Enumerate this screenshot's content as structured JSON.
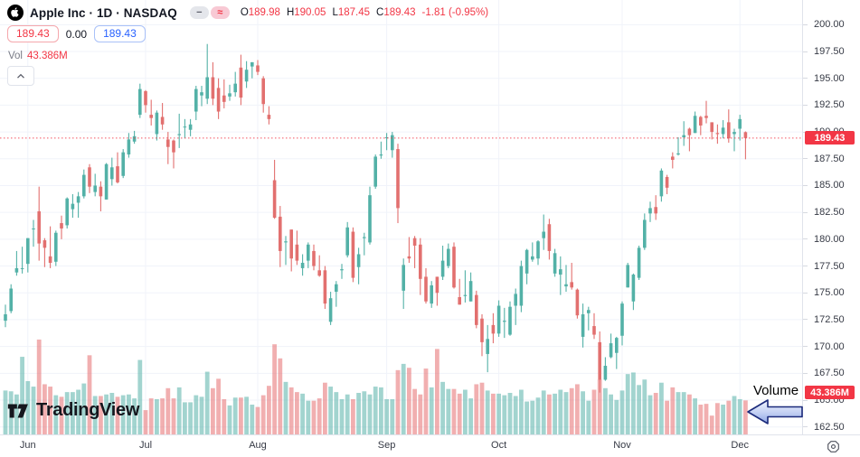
{
  "header": {
    "symbol_title": "Apple Inc · 1D · NASDAQ",
    "toolbar_icons": {
      "collapse_glyph": "−",
      "approx_glyph": "≈"
    },
    "ohlc": {
      "open_label": "O",
      "open": "189.98",
      "high_label": "H",
      "high": "190.05",
      "low_label": "L",
      "low": "187.45",
      "close_label": "C",
      "close": "189.43",
      "change": "-1.81 (-0.95%)"
    },
    "quote_boxes": {
      "sell": "189.43",
      "spread": "0.00",
      "buy": "189.43"
    },
    "volume_row": {
      "label": "Vol",
      "value": "43.386M"
    }
  },
  "badges": {
    "last_price": "189.43",
    "volume": "43.386M"
  },
  "annotation": {
    "label": "Volume"
  },
  "watermark": {
    "brand": "TradingView"
  },
  "colors": {
    "up": "#53b1a7",
    "down": "#e2706f",
    "up_volume": "rgba(85,177,167,0.55)",
    "down_volume": "rgba(230,110,112,0.55)",
    "accent_red": "#f23645",
    "buy_blue": "#2962ff",
    "grid": "#f0f3fa",
    "axis_text": "#363a45",
    "title_text": "#131722"
  },
  "chart_data": {
    "type": "candlestick",
    "symbol": "Apple Inc",
    "exchange": "NASDAQ",
    "interval": "1D",
    "last_close": 189.43,
    "last_volume_label": "43.386M",
    "y_axis_range": [
      162.1,
      202.3
    ],
    "grid": true,
    "price_ticks": [
      "200.00",
      "197.50",
      "195.00",
      "192.50",
      "190.00",
      "187.50",
      "185.00",
      "182.50",
      "180.00",
      "177.50",
      "175.00",
      "172.50",
      "170.00",
      "167.50",
      "165.00",
      "162.50"
    ],
    "month_ticks": [
      {
        "label": "Jun",
        "index": 4
      },
      {
        "label": "Jul",
        "index": 25
      },
      {
        "label": "Aug",
        "index": 45
      },
      {
        "label": "Sep",
        "index": 68
      },
      {
        "label": "Oct",
        "index": 88
      },
      {
        "label": "Nov",
        "index": 110
      },
      {
        "label": "Dec",
        "index": 131
      }
    ],
    "candles_format": [
      "open",
      "high",
      "low",
      "close",
      "volume_millions"
    ],
    "candles": [
      [
        172.4,
        173.9,
        171.8,
        173.0,
        56
      ],
      [
        173.3,
        175.8,
        173.1,
        175.4,
        55
      ],
      [
        176.9,
        178.9,
        176.6,
        177.3,
        51
      ],
      [
        177.3,
        179.3,
        176.8,
        177.3,
        99
      ],
      [
        177.7,
        180.1,
        176.9,
        180.1,
        68
      ],
      [
        181.0,
        181.8,
        179.3,
        181.0,
        61
      ],
      [
        182.6,
        184.9,
        178.0,
        179.6,
        121
      ],
      [
        179.9,
        180.1,
        177.4,
        179.2,
        64
      ],
      [
        178.4,
        181.2,
        177.3,
        177.8,
        61
      ],
      [
        177.9,
        180.8,
        177.5,
        180.6,
        50
      ],
      [
        181.5,
        182.2,
        180.0,
        181.0,
        48
      ],
      [
        181.3,
        183.9,
        181.0,
        183.8,
        54
      ],
      [
        182.8,
        184.2,
        182.0,
        183.3,
        54
      ],
      [
        183.4,
        184.4,
        182.0,
        184.0,
        57
      ],
      [
        184.0,
        186.5,
        183.8,
        186.0,
        65
      ],
      [
        186.7,
        187.0,
        184.3,
        184.9,
        101
      ],
      [
        184.4,
        186.1,
        184.0,
        185.0,
        49
      ],
      [
        184.9,
        185.4,
        182.6,
        184.0,
        49
      ],
      [
        183.7,
        187.1,
        183.7,
        187.0,
        51
      ],
      [
        185.6,
        187.6,
        185.0,
        186.7,
        53
      ],
      [
        186.8,
        188.1,
        185.2,
        185.3,
        48
      ],
      [
        185.9,
        188.4,
        185.7,
        188.1,
        50
      ],
      [
        187.9,
        189.9,
        187.6,
        189.3,
        51
      ],
      [
        189.1,
        190.1,
        188.9,
        189.6,
        46
      ],
      [
        191.6,
        194.5,
        191.3,
        194.0,
        95
      ],
      [
        193.8,
        193.9,
        191.8,
        192.5,
        31
      ],
      [
        191.6,
        193.0,
        190.6,
        191.3,
        46
      ],
      [
        189.8,
        192.0,
        189.2,
        191.8,
        45
      ],
      [
        191.4,
        192.7,
        190.2,
        190.7,
        46
      ],
      [
        189.3,
        190.0,
        187.0,
        188.6,
        59
      ],
      [
        189.2,
        189.3,
        186.6,
        188.1,
        46
      ],
      [
        189.7,
        191.7,
        188.5,
        189.8,
        60
      ],
      [
        190.5,
        191.2,
        189.4,
        190.5,
        41
      ],
      [
        190.2,
        191.2,
        189.6,
        190.7,
        41
      ],
      [
        191.9,
        194.3,
        191.1,
        194.0,
        50
      ],
      [
        193.4,
        194.3,
        192.4,
        193.7,
        48
      ],
      [
        193.1,
        198.2,
        192.6,
        195.1,
        80
      ],
      [
        195.1,
        196.5,
        192.5,
        193.1,
        59
      ],
      [
        194.1,
        195.0,
        191.2,
        191.9,
        71
      ],
      [
        193.4,
        194.9,
        192.2,
        192.8,
        45
      ],
      [
        193.3,
        194.4,
        192.9,
        193.6,
        37
      ],
      [
        193.7,
        195.6,
        193.3,
        194.5,
        47
      ],
      [
        196.0,
        197.2,
        192.5,
        193.2,
        47
      ],
      [
        194.7,
        196.6,
        194.1,
        195.8,
        48
      ],
      [
        196.1,
        196.5,
        195.0,
        196.5,
        38
      ],
      [
        196.2,
        196.7,
        195.3,
        195.6,
        35
      ],
      [
        195.0,
        195.2,
        191.8,
        192.6,
        50
      ],
      [
        191.6,
        192.4,
        190.7,
        191.2,
        62
      ],
      [
        185.5,
        187.4,
        181.9,
        182.0,
        115
      ],
      [
        182.1,
        183.1,
        177.4,
        178.9,
        97
      ],
      [
        179.7,
        180.3,
        177.6,
        179.8,
        67
      ],
      [
        180.9,
        180.9,
        177.0,
        178.2,
        60
      ],
      [
        179.5,
        180.8,
        177.6,
        178.0,
        54
      ],
      [
        177.3,
        178.6,
        176.6,
        177.8,
        52
      ],
      [
        178.0,
        179.7,
        177.3,
        179.5,
        43
      ],
      [
        178.9,
        179.5,
        177.1,
        177.5,
        43
      ],
      [
        177.1,
        178.5,
        176.5,
        176.6,
        46
      ],
      [
        177.1,
        177.5,
        173.5,
        174.0,
        66
      ],
      [
        172.3,
        175.1,
        172.0,
        174.5,
        61
      ],
      [
        175.1,
        176.1,
        173.7,
        175.8,
        54
      ],
      [
        177.1,
        177.7,
        176.3,
        177.2,
        45
      ],
      [
        178.5,
        181.6,
        178.3,
        181.1,
        51
      ],
      [
        180.7,
        181.1,
        176.0,
        176.4,
        45
      ],
      [
        177.4,
        179.2,
        175.8,
        178.6,
        53
      ],
      [
        180.1,
        180.6,
        178.5,
        180.2,
        55
      ],
      [
        179.7,
        184.9,
        179.5,
        184.1,
        51
      ],
      [
        184.9,
        187.9,
        184.7,
        187.7,
        61
      ],
      [
        187.8,
        189.1,
        187.5,
        187.9,
        60
      ],
      [
        189.5,
        189.9,
        188.3,
        189.5,
        45
      ],
      [
        188.3,
        190.0,
        187.6,
        189.7,
        45
      ],
      [
        188.4,
        188.9,
        181.5,
        182.9,
        82
      ],
      [
        175.2,
        178.2,
        173.5,
        177.6,
        90
      ],
      [
        178.4,
        180.2,
        177.8,
        178.2,
        85
      ],
      [
        180.1,
        180.3,
        177.3,
        179.4,
        58
      ],
      [
        179.5,
        180.1,
        174.8,
        176.3,
        51
      ],
      [
        176.5,
        177.3,
        174.0,
        174.2,
        84
      ],
      [
        174.0,
        176.1,
        173.6,
        175.7,
        60
      ],
      [
        176.5,
        176.5,
        173.8,
        175.0,
        109
      ],
      [
        176.5,
        179.4,
        176.2,
        178.0,
        67
      ],
      [
        177.5,
        179.6,
        177.3,
        179.1,
        58
      ],
      [
        179.3,
        179.7,
        175.4,
        175.5,
        58
      ],
      [
        174.6,
        176.3,
        173.9,
        173.9,
        52
      ],
      [
        174.7,
        177.1,
        174.1,
        174.8,
        57
      ],
      [
        174.2,
        176.9,
        174.2,
        176.1,
        46
      ],
      [
        174.8,
        175.2,
        171.7,
        172.0,
        64
      ],
      [
        172.6,
        173.0,
        169.1,
        170.4,
        66
      ],
      [
        169.3,
        172.0,
        167.6,
        170.7,
        56
      ],
      [
        172.0,
        173.1,
        170.3,
        171.2,
        52
      ],
      [
        171.2,
        174.3,
        170.9,
        173.8,
        52
      ],
      [
        172.3,
        173.6,
        170.8,
        172.4,
        50
      ],
      [
        171.1,
        174.2,
        171.0,
        173.7,
        53
      ],
      [
        173.8,
        175.4,
        172.0,
        174.9,
        49
      ],
      [
        173.8,
        178.0,
        173.2,
        177.5,
        57
      ],
      [
        176.8,
        179.1,
        175.8,
        179.0,
        42
      ],
      [
        178.1,
        179.7,
        177.9,
        178.4,
        43
      ],
      [
        178.2,
        179.9,
        177.6,
        179.8,
        47
      ],
      [
        180.1,
        182.3,
        179.0,
        180.7,
        56
      ],
      [
        181.4,
        181.9,
        178.1,
        178.9,
        51
      ],
      [
        176.8,
        179.1,
        176.5,
        178.7,
        52
      ],
      [
        176.7,
        178.4,
        174.8,
        177.2,
        57
      ],
      [
        175.6,
        177.6,
        175.1,
        175.8,
        54
      ],
      [
        176.0,
        177.8,
        175.3,
        175.5,
        59
      ],
      [
        175.3,
        175.4,
        172.6,
        172.9,
        64
      ],
      [
        170.9,
        174.0,
        169.9,
        173.0,
        55
      ],
      [
        173.1,
        173.7,
        171.5,
        173.4,
        43
      ],
      [
        171.9,
        173.1,
        170.7,
        171.1,
        57
      ],
      [
        170.4,
        171.4,
        165.7,
        166.9,
        70
      ],
      [
        166.9,
        169.0,
        166.8,
        168.2,
        59
      ],
      [
        169.0,
        171.2,
        168.9,
        170.3,
        51
      ],
      [
        169.4,
        170.9,
        167.9,
        170.8,
        44
      ],
      [
        171.0,
        174.2,
        170.1,
        174.0,
        56
      ],
      [
        175.5,
        177.8,
        175.5,
        177.6,
        77
      ],
      [
        174.2,
        176.8,
        173.4,
        176.7,
        79
      ],
      [
        176.4,
        179.4,
        176.2,
        179.2,
        63
      ],
      [
        179.2,
        182.4,
        179.0,
        181.8,
        70
      ],
      [
        182.4,
        183.5,
        181.6,
        182.9,
        50
      ],
      [
        183.0,
        184.1,
        181.8,
        182.4,
        53
      ],
      [
        184.0,
        186.6,
        183.5,
        186.4,
        66
      ],
      [
        185.8,
        186.0,
        184.2,
        184.8,
        43
      ],
      [
        187.7,
        188.1,
        186.6,
        187.4,
        60
      ],
      [
        187.9,
        189.5,
        187.8,
        188.0,
        54
      ],
      [
        189.5,
        191.0,
        188.7,
        189.7,
        54
      ],
      [
        190.3,
        190.4,
        188.2,
        189.7,
        51
      ],
      [
        189.9,
        191.9,
        189.9,
        191.5,
        46
      ],
      [
        191.4,
        191.5,
        189.7,
        190.6,
        38
      ],
      [
        191.5,
        192.9,
        190.8,
        191.3,
        39
      ],
      [
        190.9,
        190.9,
        189.3,
        190.0,
        24
      ],
      [
        189.9,
        190.7,
        188.9,
        189.8,
        40
      ],
      [
        189.8,
        191.1,
        189.4,
        190.4,
        38
      ],
      [
        190.9,
        192.1,
        189.0,
        189.4,
        43
      ],
      [
        189.8,
        190.3,
        188.2,
        190.0,
        49
      ],
      [
        190.3,
        191.6,
        189.2,
        191.2,
        45
      ],
      [
        189.98,
        190.05,
        187.45,
        189.43,
        43.386
      ]
    ]
  }
}
